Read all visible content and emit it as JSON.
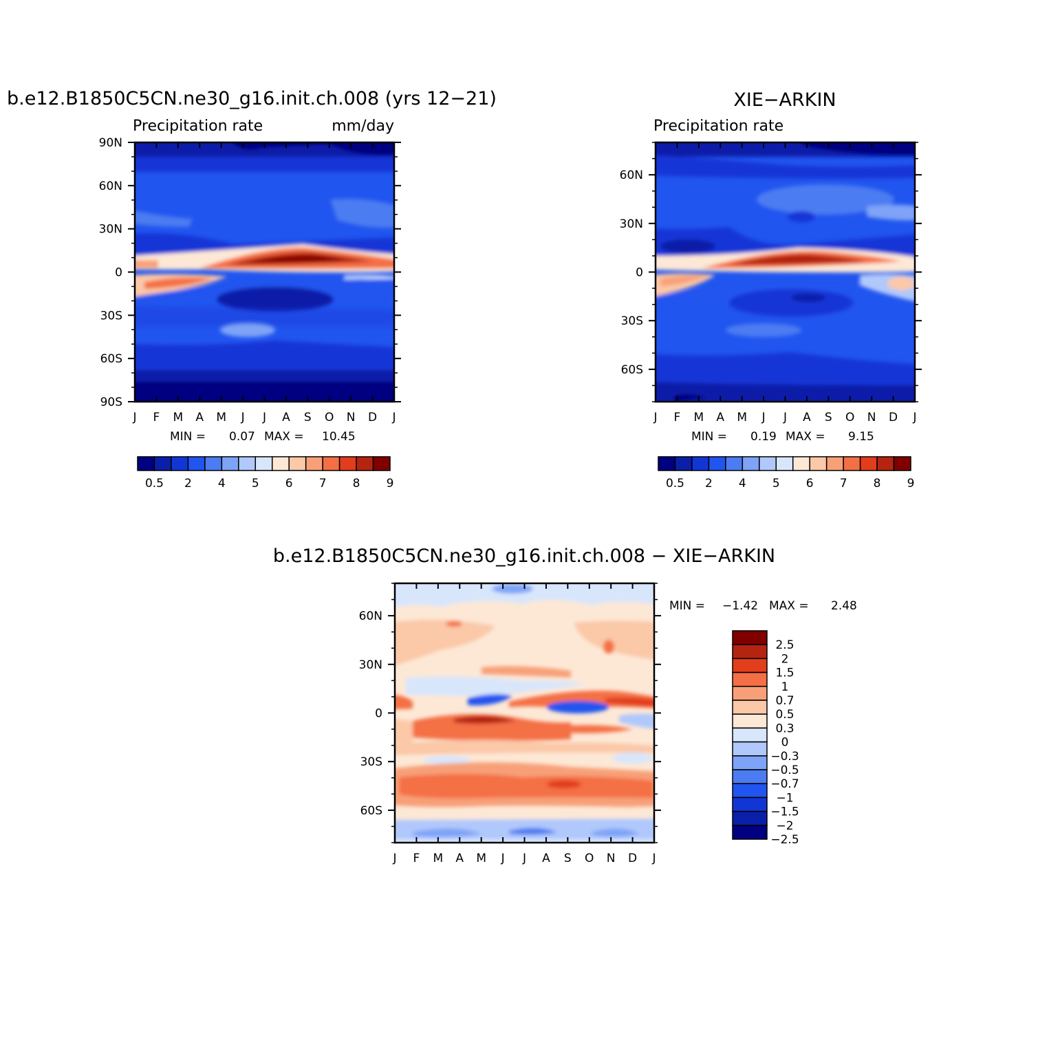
{
  "colors": {
    "sequential_levels": [
      "#000080",
      "#0a1fa8",
      "#1236d6",
      "#2155ef",
      "#4c7cf2",
      "#7ea3f7",
      "#b0c8fb",
      "#d8e6fc",
      "#fde8d6",
      "#fbc8a8",
      "#f7a078",
      "#f46f45",
      "#e23e1c",
      "#b52410",
      "#800000"
    ],
    "difference_levels": [
      "#000080",
      "#0a1fa8",
      "#1236d6",
      "#2155ef",
      "#4c7cf2",
      "#7ea3f7",
      "#b0c8fb",
      "#d8e6fc",
      "#fde8d6",
      "#fbc8a8",
      "#f7a078",
      "#f46f45",
      "#e23e1c",
      "#b52410",
      "#800000"
    ]
  },
  "chart_data": [
    {
      "type": "heatmap",
      "title": "b.e12.B1850C5CN.ne30_g16.init.ch.008 (yrs 12−21)",
      "subtitle_left": "Precipitation rate",
      "subtitle_right": "mm/day",
      "x_ticks": [
        "J",
        "F",
        "M",
        "A",
        "M",
        "J",
        "J",
        "A",
        "S",
        "O",
        "N",
        "D",
        "J"
      ],
      "y_ticks": [
        "90N",
        "60N",
        "30N",
        "0",
        "30S",
        "60S",
        "90S"
      ],
      "ylim": [
        -90,
        90
      ],
      "stats": {
        "min_label": "MIN =",
        "min": "0.07",
        "max_label": "MAX =",
        "max": "10.45"
      },
      "colorbar_labels": [
        "0.5",
        "2",
        "4",
        "5",
        "6",
        "7",
        "8",
        "9"
      ],
      "description_of_field": "zonal-mean seasonal cycle; ITCZ maximum near 10N peaking Jul-Sep (~10 mm/day)"
    },
    {
      "type": "heatmap",
      "title": "XIE−ARKIN",
      "subtitle_left": "Precipitation rate",
      "x_ticks": [
        "J",
        "F",
        "M",
        "A",
        "M",
        "J",
        "J",
        "A",
        "S",
        "O",
        "N",
        "D",
        "J"
      ],
      "y_ticks": [
        "60N",
        "30N",
        "0",
        "30S",
        "60S"
      ],
      "ylim": [
        -80,
        80
      ],
      "stats": {
        "min_label": "MIN =",
        "min": "0.19",
        "max_label": "MAX =",
        "max": "9.15"
      },
      "colorbar_labels": [
        "0.5",
        "2",
        "4",
        "5",
        "6",
        "7",
        "8",
        "9"
      ]
    },
    {
      "type": "heatmap",
      "title": "b.e12.B1850C5CN.ne30_g16.init.ch.008 − XIE−ARKIN",
      "x_ticks": [
        "J",
        "F",
        "M",
        "A",
        "M",
        "J",
        "J",
        "A",
        "S",
        "O",
        "N",
        "D",
        "J"
      ],
      "y_ticks": [
        "60N",
        "30N",
        "0",
        "30S",
        "60S"
      ],
      "ylim": [
        -80,
        80
      ],
      "stats": {
        "min_label": "MIN =",
        "min": "−1.42",
        "max_label": "MAX =",
        "max": "2.48"
      },
      "colorbar_labels": [
        "2.5",
        "2",
        "1.5",
        "1",
        "0.7",
        "0.5",
        "0.3",
        "0",
        "−0.3",
        "−0.5",
        "−0.7",
        "−1",
        "−1.5",
        "−2",
        "−2.5"
      ]
    }
  ]
}
